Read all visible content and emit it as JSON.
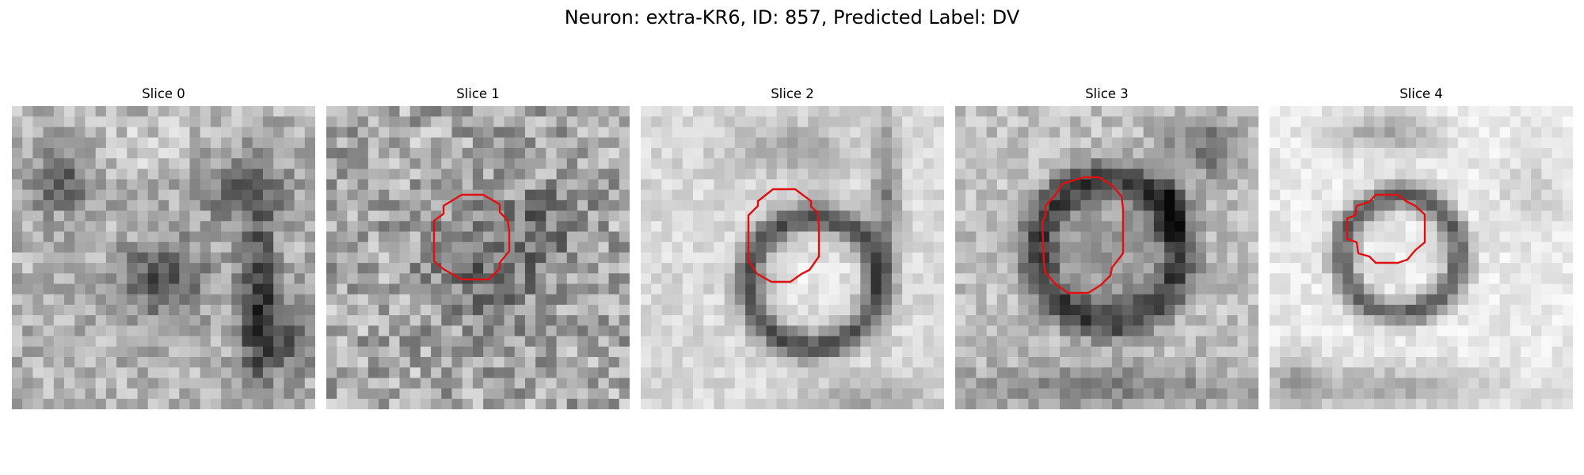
{
  "figure": {
    "title": "Neuron: extra-KR6, ID: 857, Predicted Label: DV",
    "contour_color": "#e01010"
  },
  "slices": [
    {
      "title": "Slice 0",
      "has_contour": false,
      "style": "dark-blobs"
    },
    {
      "title": "Slice 1",
      "has_contour": true,
      "style": "noisy-mid"
    },
    {
      "title": "Slice 2",
      "has_contour": true,
      "style": "bright-ring"
    },
    {
      "title": "Slice 3",
      "has_contour": true,
      "style": "dark-ring"
    },
    {
      "title": "Slice 4",
      "has_contour": true,
      "style": "very-bright-ring"
    }
  ]
}
